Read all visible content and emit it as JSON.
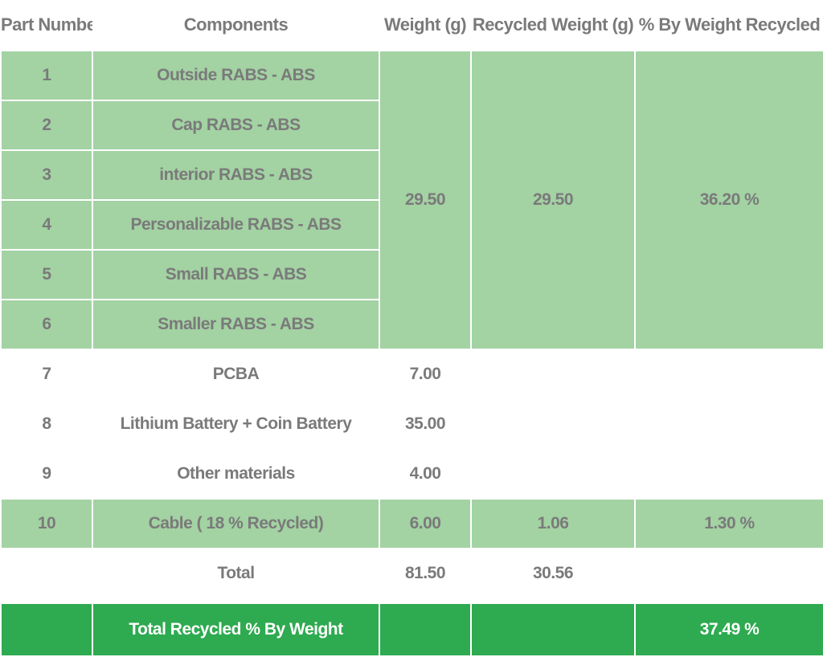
{
  "headers": {
    "part_number": "Part Number",
    "components": "Components",
    "weight": "Weight (g)",
    "recycled_weight": "Recycled Weight (g)",
    "pct_recycled": "% By Weight Recycled"
  },
  "rows": [
    {
      "part": "1",
      "component": "Outside RABS - ABS"
    },
    {
      "part": "2",
      "component": "Cap RABS - ABS"
    },
    {
      "part": "3",
      "component": "interior RABS - ABS"
    },
    {
      "part": "4",
      "component": "Personalizable RABS - ABS"
    },
    {
      "part": "5",
      "component": "Small RABS - ABS"
    },
    {
      "part": "6",
      "component": "Smaller RABS - ABS"
    },
    {
      "part": "7",
      "component": "PCBA",
      "weight": "7.00"
    },
    {
      "part": "8",
      "component": "Lithium Battery + Coin Battery",
      "weight": "35.00"
    },
    {
      "part": "9",
      "component": "Other materials",
      "weight": "4.00"
    },
    {
      "part": "10",
      "component": "Cable ( 18 % Recycled)",
      "weight": "6.00",
      "recycled": "1.06",
      "pct": "1.30 %"
    }
  ],
  "group_rabs": {
    "weight": "29.50",
    "recycled": "29.50",
    "pct": "36.20 %"
  },
  "totals": {
    "label": "Total",
    "weight": "81.50",
    "recycled": "30.56"
  },
  "final": {
    "label": "Total Recycled % By Weight",
    "pct": "37.49 %"
  },
  "colors": {
    "light_green": "#a3d2a3",
    "dark_green": "#2eaa50",
    "text_gray": "#7a7a7a"
  }
}
